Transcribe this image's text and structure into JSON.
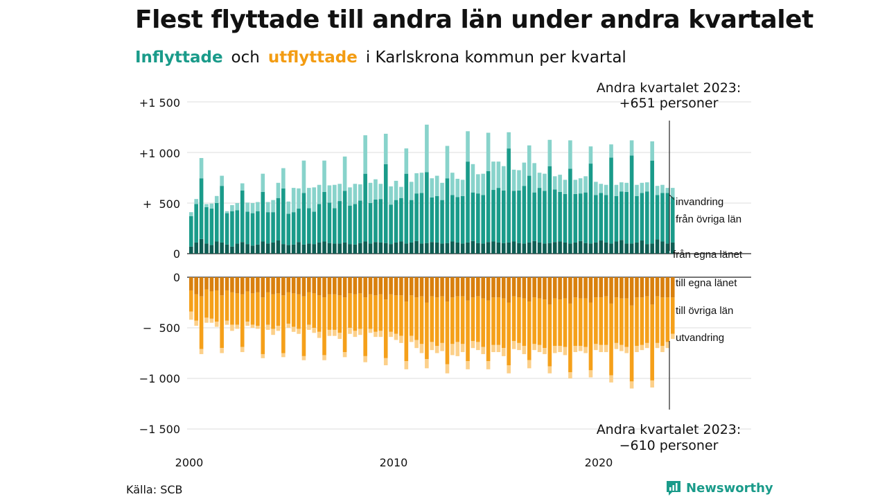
{
  "header": {
    "title": "Flest flyttade till andra län under andra kvartalet",
    "subtitle_in": "Inflyttade",
    "subtitle_och": "och",
    "subtitle_out": "utflyttade",
    "subtitle_rest": "i Karlskrona  kommun  per  kvartal"
  },
  "footer": {
    "source": "Källa: SCB",
    "brand": "Newsworthy"
  },
  "colors": {
    "in_own": "#0e5e54",
    "in_other": "#1a9b8a",
    "in_abroad": "#88d3cb",
    "out_own": "#d9800d",
    "out_other": "#f5a01a",
    "out_abroad": "#fcd08a",
    "grid": "#dddddd"
  },
  "chart_data": {
    "type": "bar",
    "stacked": true,
    "title": "Flest flyttade till andra län under andra kvartalet",
    "x_ticks": [
      "2000",
      "2010",
      "2020"
    ],
    "y_ticks_top": [
      "+1 500",
      "+1 000",
      "+  500",
      "0"
    ],
    "y_ticks_bottom": [
      "0",
      "−  500",
      "−1 000",
      "−1 500"
    ],
    "ylim_in": [
      0,
      1500
    ],
    "ylim_out": [
      -1500,
      0
    ],
    "annotation_top_line1": "Andra kvartalet 2023:",
    "annotation_top_line2": "+651 personer",
    "annotation_bottom_line1": "Andra kvartalet 2023:",
    "annotation_bottom_line2": "−610 personer",
    "in_labels": [
      "invandring",
      "från övriga län",
      "från egna länet"
    ],
    "out_labels": [
      "till egna länet",
      "till övriga län",
      "utvandring"
    ],
    "x_start": "2000 Q1",
    "x_end": "2023 Q2",
    "in_own": [
      70,
      110,
      145,
      100,
      85,
      120,
      110,
      90,
      70,
      100,
      115,
      95,
      80,
      90,
      120,
      100,
      110,
      130,
      95,
      85,
      90,
      115,
      90,
      100,
      95,
      110,
      120,
      105,
      100,
      100,
      110,
      95,
      90,
      105,
      120,
      100,
      115,
      110,
      105,
      95,
      110,
      120,
      100,
      110,
      125,
      100,
      105,
      115,
      110,
      100,
      105,
      120,
      110,
      100,
      110,
      125,
      105,
      100,
      115,
      120,
      110,
      105,
      110,
      120,
      105,
      100,
      110,
      125,
      110,
      100,
      105,
      115,
      120,
      110,
      100,
      110,
      125,
      105,
      100,
      110,
      130,
      110,
      100,
      120,
      135,
      100,
      100,
      110,
      130,
      95,
      100,
      140,
      120,
      100,
      110
    ],
    "in_other": [
      300,
      380,
      600,
      360,
      360,
      380,
      560,
      310,
      350,
      330,
      510,
      320,
      320,
      330,
      490,
      310,
      300,
      420,
      550,
      310,
      320,
      330,
      510,
      350,
      320,
      380,
      490,
      400,
      350,
      420,
      510,
      380,
      400,
      420,
      670,
      400,
      420,
      430,
      780,
      390,
      420,
      430,
      690,
      420,
      470,
      500,
      700,
      440,
      460,
      430,
      640,
      460,
      450,
      470,
      800,
      480,
      490,
      480,
      700,
      510,
      540,
      520,
      930,
      500,
      520,
      570,
      660,
      480,
      540,
      520,
      760,
      520,
      490,
      480,
      740,
      480,
      470,
      500,
      790,
      470,
      470,
      470,
      850,
      450,
      480,
      510,
      870,
      460,
      470,
      520,
      820,
      440,
      480,
      500,
      450
    ],
    "in_abroad": [
      40,
      50,
      200,
      30,
      50,
      70,
      100,
      20,
      60,
      70,
      70,
      90,
      100,
      90,
      180,
      100,
      120,
      150,
      200,
      120,
      240,
      200,
      320,
      200,
      240,
      190,
      310,
      170,
      230,
      170,
      340,
      180,
      200,
      160,
      380,
      200,
      200,
      150,
      300,
      180,
      190,
      110,
      250,
      180,
      200,
      200,
      470,
      190,
      200,
      170,
      320,
      220,
      180,
      160,
      300,
      280,
      190,
      210,
      380,
      280,
      260,
      240,
      160,
      210,
      200,
      230,
      300,
      290,
      150,
      170,
      260,
      130,
      170,
      140,
      280,
      140,
      150,
      160,
      170,
      130,
      90,
      100,
      130,
      110,
      90,
      90,
      150,
      110,
      100,
      90,
      190,
      90,
      80,
      50,
      90
    ],
    "out_own": [
      -130,
      -170,
      -190,
      -120,
      -140,
      -130,
      -180,
      -130,
      -150,
      -160,
      -170,
      -140,
      -160,
      -150,
      -200,
      -150,
      -170,
      -160,
      -180,
      -150,
      -160,
      -170,
      -190,
      -150,
      -160,
      -180,
      -200,
      -170,
      -170,
      -180,
      -200,
      -160,
      -170,
      -160,
      -200,
      -170,
      -180,
      -170,
      -220,
      -170,
      -180,
      -180,
      -240,
      -180,
      -200,
      -190,
      -250,
      -190,
      -200,
      -190,
      -240,
      -200,
      -190,
      -190,
      -230,
      -200,
      -190,
      -210,
      -230,
      -200,
      -200,
      -210,
      -250,
      -190,
      -200,
      -210,
      -240,
      -200,
      -210,
      -220,
      -270,
      -210,
      -220,
      -210,
      -260,
      -200,
      -210,
      -210,
      -250,
      -200,
      -200,
      -190,
      -260,
      -200,
      -210,
      -210,
      -280,
      -200,
      -200,
      -190,
      -270,
      -190,
      -200,
      -200,
      -200
    ],
    "out_other": [
      -210,
      -260,
      -520,
      -280,
      -270,
      -310,
      -520,
      -300,
      -320,
      -310,
      -520,
      -300,
      -310,
      -330,
      -560,
      -320,
      -340,
      -320,
      -570,
      -310,
      -330,
      -340,
      -590,
      -320,
      -340,
      -360,
      -570,
      -350,
      -350,
      -370,
      -540,
      -340,
      -360,
      -350,
      -580,
      -340,
      -360,
      -360,
      -580,
      -370,
      -380,
      -400,
      -590,
      -400,
      -420,
      -470,
      -560,
      -450,
      -480,
      -460,
      -620,
      -460,
      -450,
      -470,
      -600,
      -430,
      -450,
      -480,
      -600,
      -470,
      -470,
      -490,
      -620,
      -440,
      -450,
      -470,
      -580,
      -460,
      -460,
      -480,
      -610,
      -470,
      -460,
      -480,
      -680,
      -480,
      -470,
      -480,
      -670,
      -460,
      -470,
      -480,
      -710,
      -450,
      -460,
      -480,
      -750,
      -480,
      -470,
      -460,
      -750,
      -460,
      -480,
      -440,
      -360
    ],
    "out_abroad": [
      -80,
      -50,
      -50,
      -50,
      -40,
      -50,
      -50,
      -40,
      -60,
      -40,
      -50,
      -40,
      -30,
      -30,
      -40,
      -50,
      -60,
      -50,
      -40,
      -40,
      -50,
      -50,
      -40,
      -50,
      -50,
      -60,
      -50,
      -60,
      -60,
      -60,
      -50,
      -60,
      -60,
      -60,
      -60,
      -40,
      -50,
      -60,
      -70,
      -50,
      -60,
      -70,
      -80,
      -60,
      -80,
      -90,
      -90,
      -80,
      -70,
      -80,
      -90,
      -110,
      -140,
      -80,
      -80,
      -70,
      -80,
      -70,
      -80,
      -70,
      -70,
      -80,
      -80,
      -80,
      -70,
      -80,
      -80,
      -60,
      -70,
      -60,
      -70,
      -70,
      -60,
      -80,
      -60,
      -60,
      -50,
      -60,
      -70,
      -60,
      -70,
      -70,
      -70,
      -60,
      -60,
      -60,
      -70,
      -60,
      -50,
      -50,
      -70,
      -50,
      -60,
      -60,
      -50
    ]
  }
}
